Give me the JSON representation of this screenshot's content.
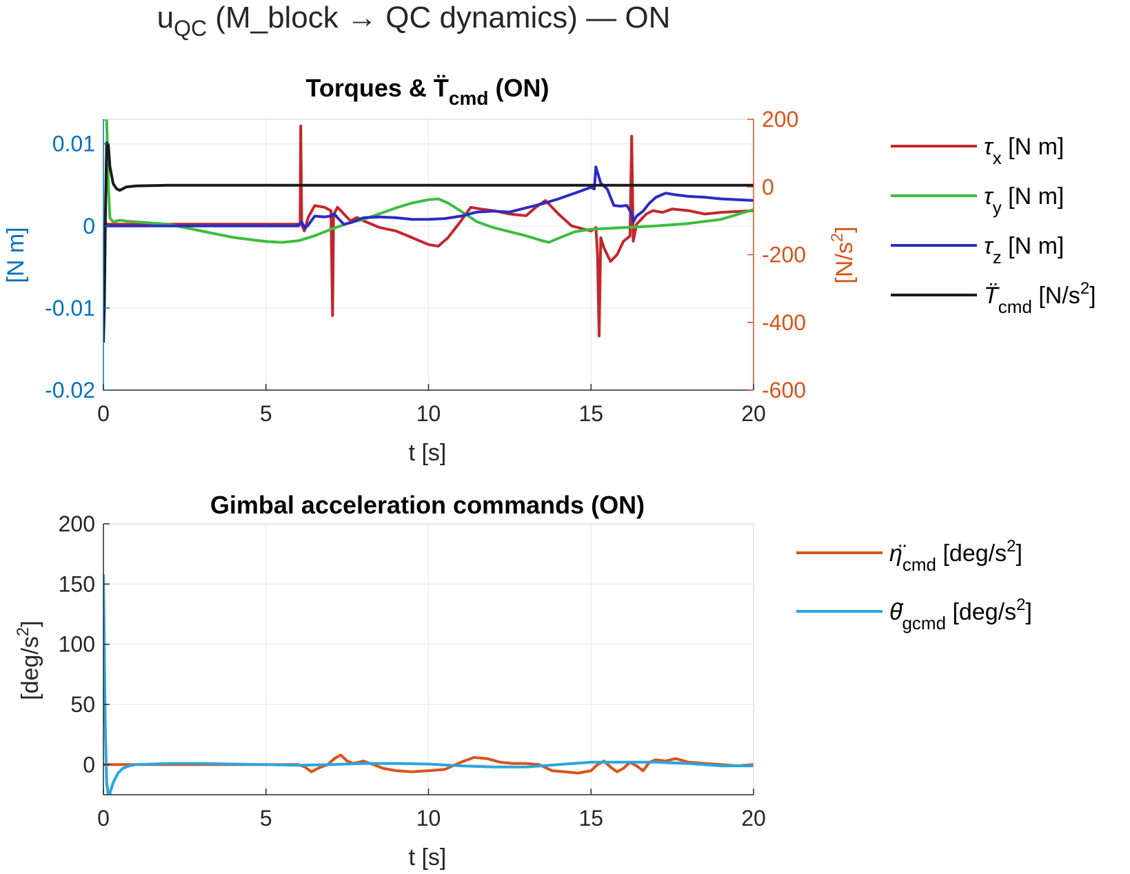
{
  "figure": {
    "title_main": "u",
    "title_sub": "QC",
    "title_rest": " (M_block → QC dynamics) — ON"
  },
  "chart_data": [
    {
      "type": "line",
      "title_pre": "Torques & T̈",
      "title_sub": "cmd",
      "title_post": " (ON)",
      "xlabel": "t [s]",
      "ylabel_left": "[N m]",
      "ylabel_right_pre": "[N/s",
      "ylabel_right_sup": "2",
      "ylabel_right_post": "]",
      "xlim": [
        0,
        20
      ],
      "ylim_left": [
        -0.02,
        0.013
      ],
      "ylim_right": [
        -600,
        200
      ],
      "xticks": [
        0,
        5,
        10,
        15,
        20
      ],
      "xtick_labels": [
        "0",
        "5",
        "10",
        "15",
        "20"
      ],
      "yticks_left": [
        -0.02,
        -0.01,
        0,
        0.01
      ],
      "ytick_labels_left": [
        "-0.02",
        "-0.01",
        "0",
        "0.01"
      ],
      "yticks_right": [
        -600,
        -400,
        -200,
        0,
        200
      ],
      "ytick_labels_right": [
        "-600",
        "-400",
        "-200",
        "0",
        "200"
      ],
      "grid": true,
      "legend_placement": "outside-right",
      "left_axis_color": "#0072BD",
      "right_axis_color": "#D95319",
      "series": [
        {
          "key": "tau_x",
          "legend_sym": "τ",
          "legend_sub": "x",
          "legend_post": " [N m]",
          "color": "#C1272D",
          "axis": "right",
          "x": [
            0,
            6.05,
            6.07,
            6.1,
            6.18,
            6.3,
            6.5,
            6.8,
            7.0,
            7.05,
            7.08,
            7.12,
            7.2,
            7.4,
            7.6,
            7.8,
            8.0,
            8.5,
            9.0,
            9.5,
            10.0,
            10.3,
            10.6,
            11.0,
            11.3,
            11.6,
            12.0,
            12.5,
            13.0,
            13.3,
            13.6,
            14.0,
            14.4,
            14.8,
            15.0,
            15.15,
            15.2,
            15.25,
            15.3,
            15.4,
            15.6,
            15.8,
            16.0,
            16.2,
            16.25,
            16.3,
            16.33,
            16.4,
            16.5,
            16.7,
            16.9,
            17.2,
            17.5,
            18.0,
            18.5,
            19.0,
            20.0
          ],
          "y": [
            -110,
            -110,
            180,
            -110,
            -130,
            -90,
            -55,
            -60,
            -70,
            -380,
            -80,
            -75,
            -60,
            -80,
            -100,
            -90,
            -100,
            -120,
            -130,
            -150,
            -170,
            -175,
            -150,
            -100,
            -60,
            -65,
            -70,
            -80,
            -85,
            -60,
            -40,
            -80,
            -115,
            -125,
            -130,
            -120,
            -200,
            -440,
            -150,
            -180,
            -220,
            -200,
            -160,
            -145,
            150,
            -160,
            -145,
            -110,
            -100,
            -80,
            -70,
            -75,
            -65,
            -70,
            -80,
            -75,
            -70
          ]
        },
        {
          "key": "tau_y",
          "legend_sym": "τ",
          "legend_sub": "y",
          "legend_post": " [N m]",
          "color": "#3EBC3E",
          "axis": "left",
          "x": [
            0,
            0.05,
            0.1,
            0.15,
            0.2,
            0.3,
            0.5,
            0.7,
            1.0,
            2.0,
            3.0,
            4.0,
            5.0,
            5.5,
            6.0,
            6.5,
            7.0,
            7.5,
            8.0,
            8.5,
            9.0,
            9.5,
            10.0,
            10.3,
            10.6,
            11.0,
            11.5,
            12.0,
            12.5,
            13.0,
            13.5,
            13.7,
            14.0,
            14.5,
            15.0,
            15.5,
            16.0,
            17.0,
            18.0,
            19.0,
            20.0
          ],
          "y": [
            0.013,
            0.013,
            0.013,
            0.005,
            0.001,
            0.0005,
            0.0007,
            0.0006,
            0.0005,
            0.0002,
            -0.0006,
            -0.0014,
            -0.0019,
            -0.002,
            -0.0018,
            -0.0012,
            -0.0004,
            0.0003,
            0.0008,
            0.0015,
            0.0022,
            0.0028,
            0.0032,
            0.0033,
            0.0028,
            0.0018,
            0.0005,
            -0.0002,
            -0.0007,
            -0.0012,
            -0.0018,
            -0.002,
            -0.0015,
            -0.0007,
            -0.0004,
            -0.0003,
            -0.0002,
            0,
            0.0003,
            0.0008,
            0.002
          ]
        },
        {
          "key": "tau_z",
          "legend_sym": "τ",
          "legend_sub": "z",
          "legend_post": " [N m]",
          "color": "#2B2BC4",
          "axis": "left",
          "x": [
            0,
            6.0,
            6.1,
            6.2,
            6.3,
            6.5,
            6.8,
            7.0,
            7.1,
            7.2,
            7.4,
            7.6,
            8.0,
            8.5,
            9.0,
            9.5,
            10.0,
            10.5,
            11.0,
            11.5,
            12.0,
            12.5,
            13.0,
            13.5,
            14.0,
            14.5,
            15.0,
            15.1,
            15.15,
            15.2,
            15.3,
            15.5,
            15.7,
            15.9,
            16.1,
            16.25,
            16.3,
            16.4,
            16.6,
            16.8,
            17.0,
            17.3,
            17.6,
            18.0,
            18.5,
            19.0,
            20.0
          ],
          "y": [
            0,
            0,
            0.0005,
            -0.0003,
            0.0001,
            0.0012,
            0.0011,
            0.0012,
            0.0015,
            0.001,
            0.0002,
            0.0004,
            0.001,
            0.0011,
            0.001,
            0.0008,
            0.0008,
            0.0009,
            0.0012,
            0.0017,
            0.0018,
            0.0017,
            0.0022,
            0.0027,
            0.0033,
            0.004,
            0.0047,
            0.0045,
            0.0072,
            0.0065,
            0.0052,
            0.0045,
            0.0025,
            0.0024,
            0.0025,
            0.0015,
            0.0005,
            0.0012,
            0.0018,
            0.0028,
            0.0035,
            0.004,
            0.0038,
            0.0036,
            0.0035,
            0.0033,
            0.0031
          ]
        },
        {
          "key": "T_cmd",
          "legend_sym": "T̈",
          "legend_sub": "cmd",
          "legend_post": " [N/s",
          "legend_sup": "2",
          "legend_end": "]",
          "color": "#1a1a1a",
          "axis": "right",
          "x": [
            0,
            0.03,
            0.06,
            0.1,
            0.15,
            0.2,
            0.3,
            0.4,
            0.5,
            0.7,
            1.0,
            2.0,
            4.0,
            6.0,
            10.0,
            15.0,
            20.0
          ],
          "y": [
            -460,
            -350,
            -100,
            130,
            125,
            60,
            10,
            -5,
            -10,
            0,
            3,
            5,
            5,
            5,
            5,
            5,
            5
          ]
        }
      ]
    },
    {
      "type": "line",
      "title": "Gimbal acceleration commands (ON)",
      "xlabel": "t [s]",
      "ylabel_pre": "[deg/s",
      "ylabel_sup": "2",
      "ylabel_post": "]",
      "xlim": [
        0,
        20
      ],
      "ylim": [
        -25,
        200
      ],
      "xticks": [
        0,
        5,
        10,
        15,
        20
      ],
      "xtick_labels": [
        "0",
        "5",
        "10",
        "15",
        "20"
      ],
      "yticks": [
        0,
        50,
        100,
        150,
        200
      ],
      "ytick_labels": [
        "0",
        "50",
        "100",
        "150",
        "200"
      ],
      "grid": true,
      "legend_placement": "outside-right",
      "series": [
        {
          "key": "eta_cmd",
          "legend_sym": "η̈",
          "legend_sub": "cmd",
          "legend_post": " [deg/s",
          "legend_sup": "2",
          "legend_end": "]",
          "color": "#D95319",
          "x": [
            0,
            6.0,
            6.2,
            6.4,
            6.6,
            6.9,
            7.1,
            7.3,
            7.5,
            7.7,
            8.0,
            8.3,
            8.6,
            9.0,
            9.5,
            10.0,
            10.5,
            11.0,
            11.4,
            11.8,
            12.2,
            12.6,
            13.0,
            13.4,
            13.8,
            14.2,
            14.6,
            15.0,
            15.2,
            15.4,
            15.6,
            15.8,
            16.0,
            16.2,
            16.4,
            16.6,
            16.8,
            17.0,
            17.3,
            17.6,
            18.0,
            18.5,
            19.0,
            19.5,
            20.0
          ],
          "y": [
            0,
            0,
            -2,
            -6,
            -3,
            0,
            5,
            8,
            3,
            1,
            3,
            0,
            -3,
            -5,
            -6,
            -5,
            -4,
            2,
            6,
            5,
            2,
            1,
            1,
            0,
            -5,
            -6,
            -7,
            -5,
            0,
            3,
            -2,
            -6,
            -3,
            2,
            -1,
            -5,
            2,
            4,
            3,
            5,
            2,
            1,
            0,
            -1,
            0
          ]
        },
        {
          "key": "theta_gcmd",
          "legend_sym": "θ̇",
          "legend_sub": "gcmd",
          "legend_post": " [deg/s",
          "legend_sup": "2",
          "legend_end": "]",
          "color": "#2AA5DE",
          "x": [
            0,
            0.02,
            0.05,
            0.1,
            0.15,
            0.2,
            0.3,
            0.45,
            0.6,
            0.8,
            1.0,
            1.5,
            2.0,
            3.0,
            4.0,
            5.0,
            6.0,
            7.0,
            8.0,
            9.0,
            10.0,
            11.0,
            12.0,
            13.0,
            14.0,
            15.0,
            16.0,
            17.0,
            18.0,
            19.0,
            20.0
          ],
          "y": [
            158,
            120,
            40,
            -15,
            -25,
            -24,
            -15,
            -7,
            -3,
            -1,
            0,
            0.5,
            1,
            1,
            0.5,
            0,
            -0.5,
            0,
            1,
            1,
            0.5,
            -1,
            -2,
            -2,
            0,
            2,
            2,
            2,
            1,
            -1,
            -1
          ]
        }
      ]
    }
  ]
}
